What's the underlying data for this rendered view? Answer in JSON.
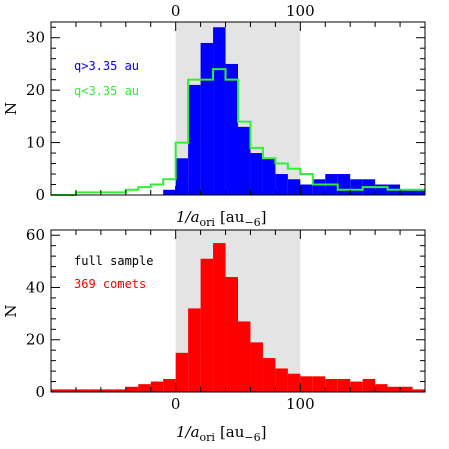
{
  "figure": {
    "colors": {
      "blue": "#0000ff",
      "green": "#33ee33",
      "red": "#ff0000",
      "band": "#e4e4e4",
      "frame": "#000000"
    }
  },
  "chart_data": [
    {
      "type": "bar",
      "panel": "top",
      "xlabel_main": "1/a",
      "xlabel_sub": "ori",
      "xlabel_units": "[au",
      "xlabel_units_sub": "−6",
      "xlabel_close": "]",
      "ylabel": "N",
      "xlim": [
        -100,
        200
      ],
      "ylim": [
        0,
        33
      ],
      "xticks": [
        0,
        100
      ],
      "yticks": [
        0,
        10,
        20,
        30
      ],
      "xtick_labels_top": [
        "0",
        "100"
      ],
      "shaded_range": [
        0,
        100
      ],
      "bin_width": 10,
      "bin_edges_start": -100,
      "series": [
        {
          "name": "q>3.35 au",
          "style": "filled",
          "color": "#0000ff",
          "values": [
            0,
            0,
            0,
            0,
            0,
            0,
            0,
            0,
            0,
            1,
            7,
            21,
            29,
            32,
            25,
            13,
            8,
            7,
            4,
            3,
            2,
            3,
            4,
            4,
            3,
            3,
            2,
            2,
            1,
            1
          ]
        },
        {
          "name": "q<3.35 au",
          "style": "step",
          "color": "#33ee33",
          "values": [
            0,
            0,
            0.5,
            0.5,
            0.5,
            0.5,
            1,
            1.5,
            2,
            3,
            10,
            22,
            22,
            24,
            22,
            14,
            9,
            7,
            6,
            5,
            4,
            2,
            2,
            1,
            1,
            1.5,
            1.5,
            1,
            1,
            1
          ]
        }
      ]
    },
    {
      "type": "bar",
      "panel": "bottom",
      "xlabel_main": "1/a",
      "xlabel_sub": "ori",
      "xlabel_units": "[au",
      "xlabel_units_sub": "−6",
      "xlabel_close": "]",
      "ylabel": "N",
      "xlim": [
        -100,
        200
      ],
      "ylim": [
        0,
        62
      ],
      "xticks": [
        0,
        100
      ],
      "yticks": [
        0,
        20,
        40,
        60
      ],
      "xtick_labels": [
        "0",
        "100"
      ],
      "shaded_range": [
        0,
        100
      ],
      "bin_width": 10,
      "bin_edges_start": -100,
      "annotations": [
        {
          "text": "full sample",
          "color": "#000000"
        },
        {
          "text": "369 comets",
          "color": "#ff0000"
        }
      ],
      "series": [
        {
          "name": "",
          "style": "filled",
          "color": "#ff0000",
          "values": [
            1,
            1,
            1,
            1,
            1,
            1,
            2,
            3,
            4,
            5,
            15,
            32,
            51,
            57,
            44,
            27,
            19,
            13,
            9,
            7,
            6,
            6,
            5,
            5,
            4,
            5,
            3,
            2,
            2,
            1
          ]
        }
      ]
    }
  ]
}
